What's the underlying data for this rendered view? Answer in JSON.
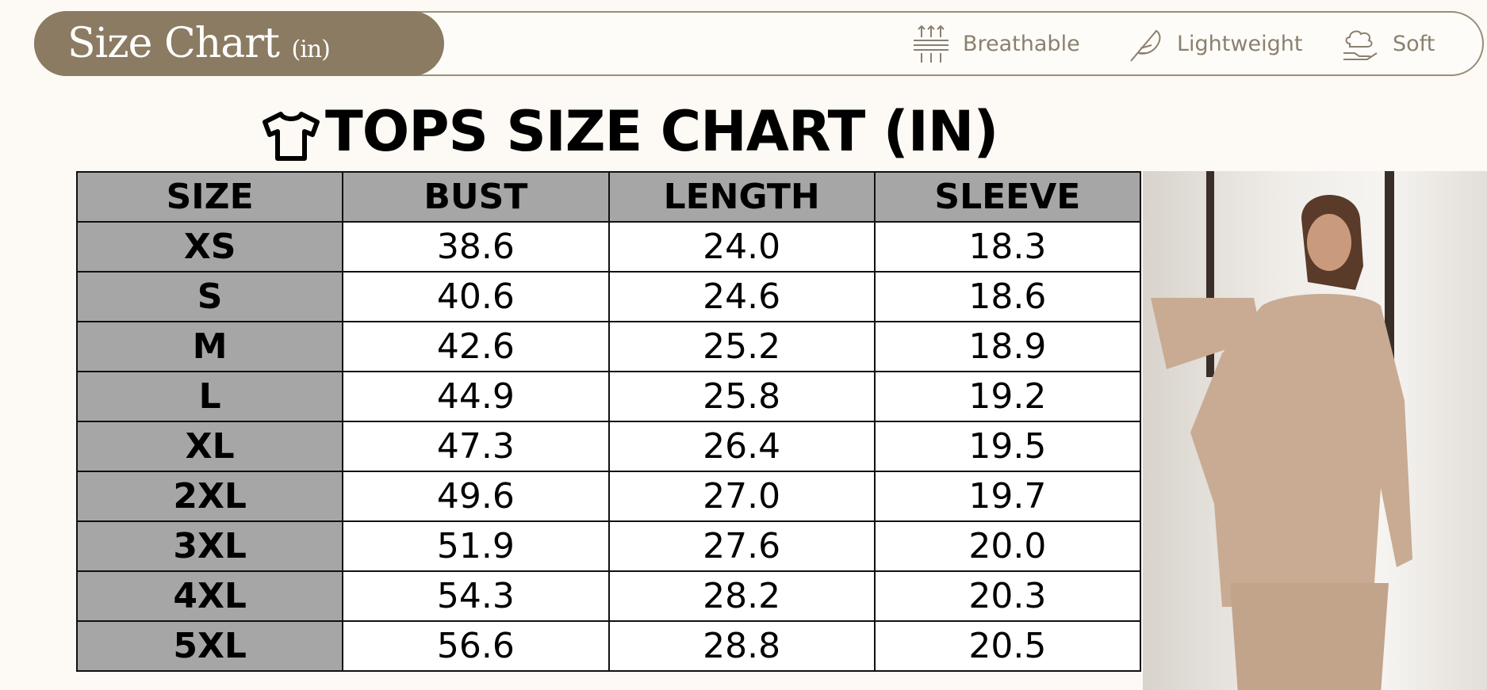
{
  "header": {
    "brand_title": "Size Chart",
    "brand_unit": "(in)",
    "features": [
      {
        "label": "Breathable",
        "icon": "breathable-icon"
      },
      {
        "label": "Lightweight",
        "icon": "feather-icon"
      },
      {
        "label": "Soft",
        "icon": "cloud-hand-icon"
      }
    ]
  },
  "chart_title": "TOPS SIZE CHART (IN)",
  "table": {
    "headers": [
      "SIZE",
      "BUST",
      "LENGTH",
      "SLEEVE"
    ],
    "rows": [
      [
        "XS",
        "38.6",
        "24.0",
        "18.3"
      ],
      [
        "S",
        "40.6",
        "24.6",
        "18.6"
      ],
      [
        "M",
        "42.6",
        "25.2",
        "18.9"
      ],
      [
        "L",
        "44.9",
        "25.8",
        "19.2"
      ],
      [
        "XL",
        "47.3",
        "26.4",
        "19.5"
      ],
      [
        "2XL",
        "49.6",
        "27.0",
        "19.7"
      ],
      [
        "3XL",
        "51.9",
        "27.6",
        "20.0"
      ],
      [
        "4XL",
        "54.3",
        "28.2",
        "20.3"
      ],
      [
        "5XL",
        "56.6",
        "28.8",
        "20.5"
      ]
    ]
  },
  "colors": {
    "brand": "#8a7b62",
    "header_cell": "#a6a6a6",
    "background": "#fdf9f4"
  }
}
